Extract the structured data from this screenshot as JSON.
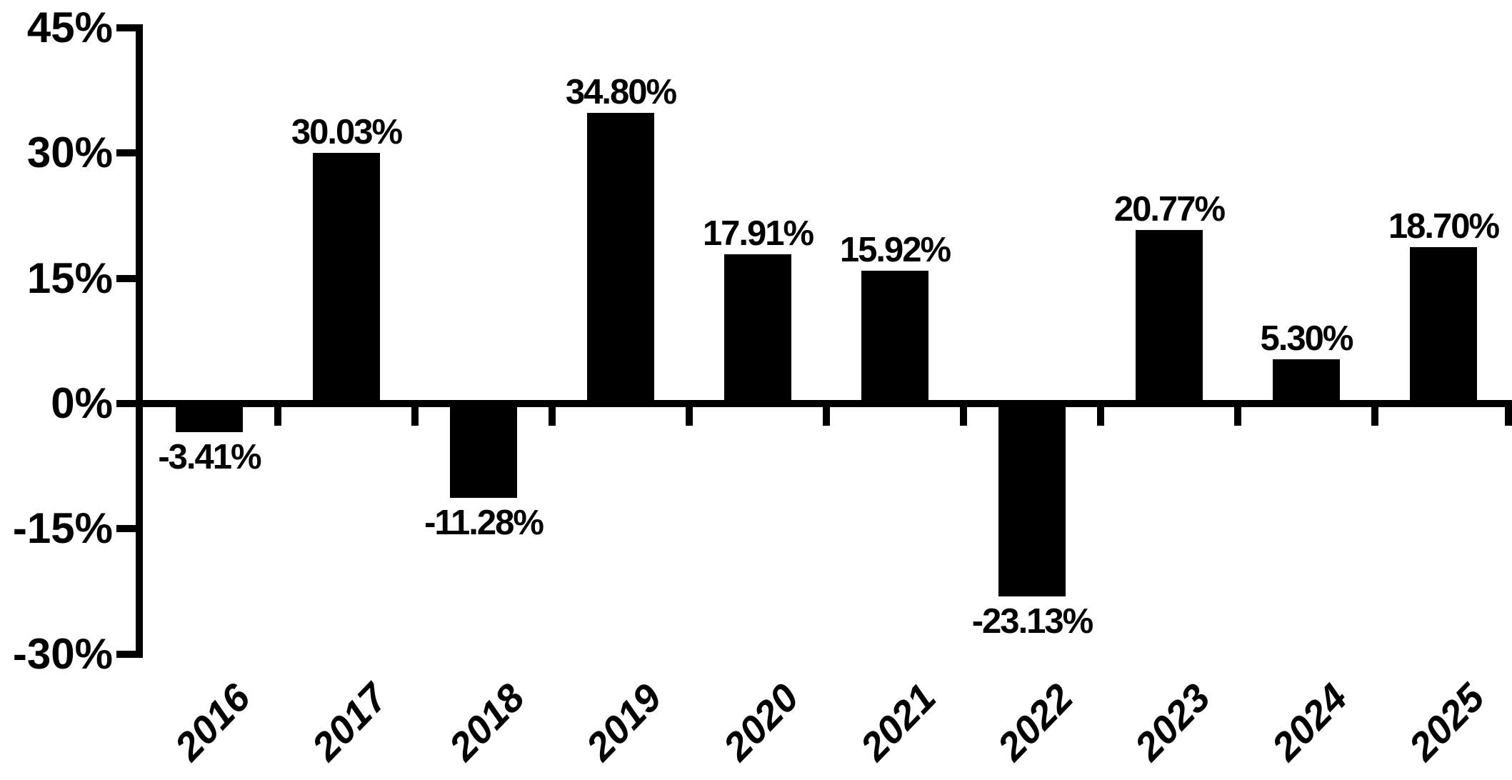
{
  "chart_data": {
    "type": "bar",
    "title": "",
    "categories": [
      "2016",
      "2017",
      "2018",
      "2019",
      "2020",
      "2021",
      "2022",
      "2023",
      "2024",
      "2025"
    ],
    "values": [
      -3.41,
      30.03,
      -11.28,
      34.8,
      17.91,
      15.92,
      -23.13,
      20.77,
      5.3,
      18.7
    ],
    "value_labels": [
      "-3.41%",
      "30.03%",
      "-11.28%",
      "34.80%",
      "17.91%",
      "15.92%",
      "-23.13%",
      "20.77%",
      "5.30%",
      "18.70%"
    ],
    "xlabel": "",
    "ylabel": "",
    "y_axis": {
      "min": -30,
      "max": 45,
      "step": 15,
      "tick_values": [
        45,
        30,
        15,
        0,
        -15,
        -30
      ],
      "tick_labels": [
        "45%",
        "30%",
        "15%",
        "0%",
        "-15%",
        "-30%"
      ]
    },
    "x_tick_angle": -46,
    "grid": false,
    "legend": false,
    "bar_color": "#000000",
    "axis_color": "#000000",
    "text_color": "#000000",
    "background_color": "#ffffff"
  }
}
